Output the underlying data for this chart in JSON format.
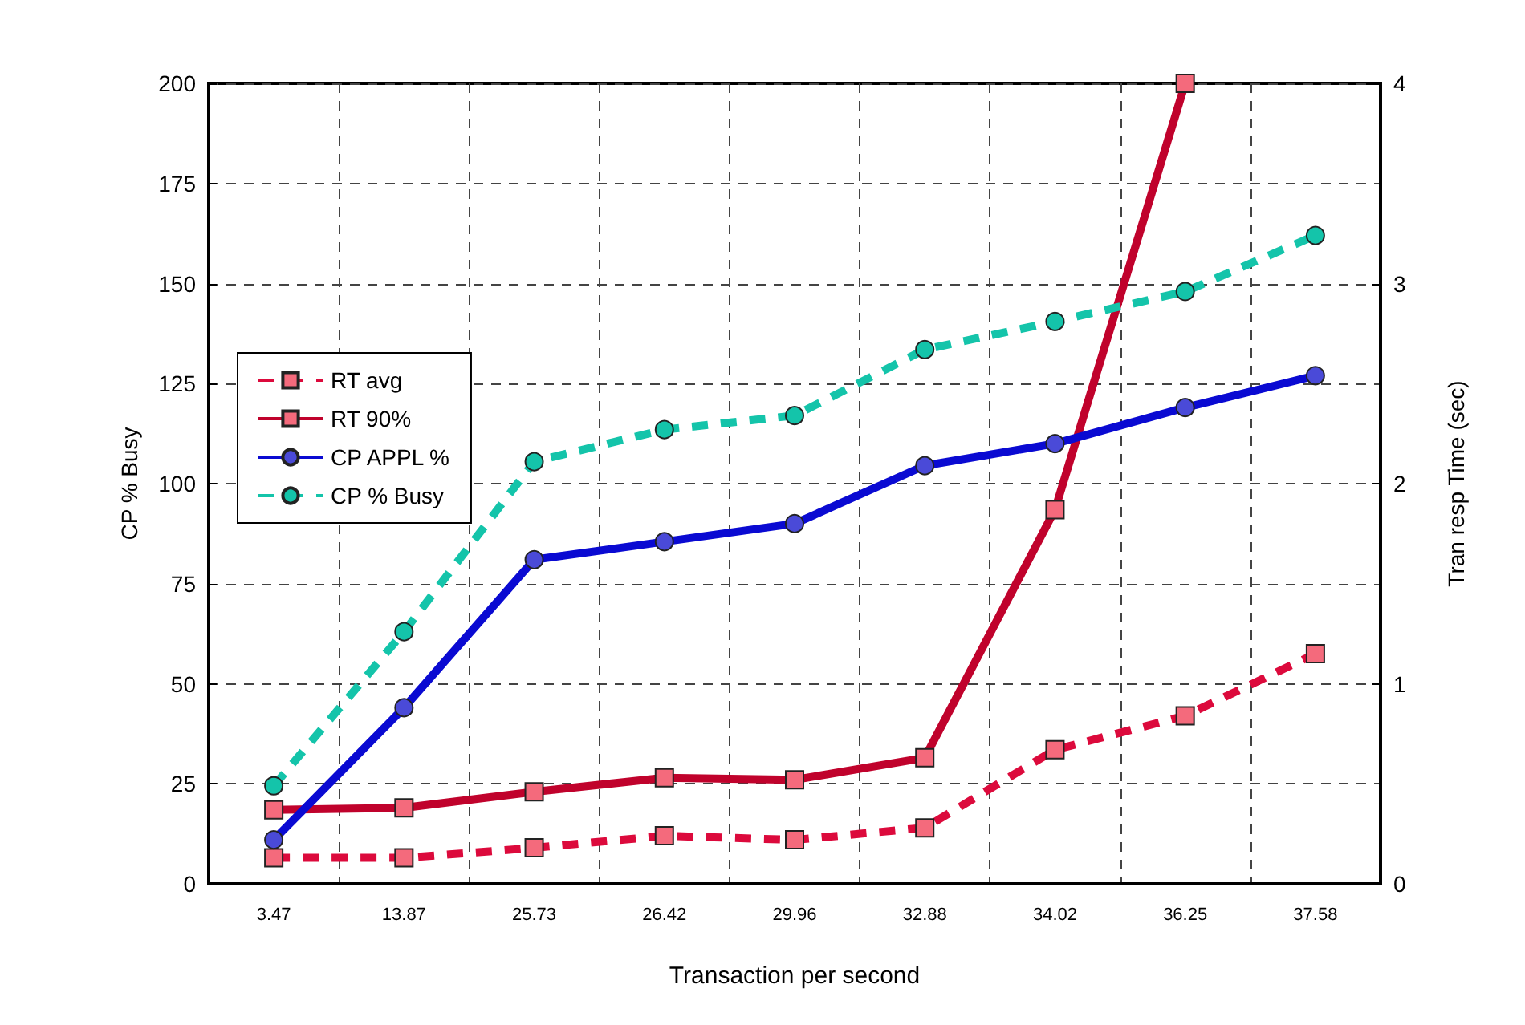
{
  "chart_data": {
    "type": "line",
    "xlabel": "Transaction per second",
    "ylabel": "CP % Busy",
    "y2label": "Tran resp Time (sec)",
    "categories": [
      "3.47",
      "13.87",
      "25.73",
      "26.42",
      "29.96",
      "32.88",
      "34.02",
      "36.25",
      "37.58"
    ],
    "series": [
      {
        "name": "RT avg",
        "color": "#dc0a3c",
        "axis": "y2",
        "line_style": "dashed",
        "marker": "square",
        "values": [
          0.13,
          0.13,
          0.18,
          0.24,
          0.22,
          0.28,
          0.67,
          0.84,
          1.15
        ]
      },
      {
        "name": "RT 90%",
        "color": "#c0022c",
        "axis": "y2",
        "line_style": "solid",
        "marker": "square",
        "values": [
          0.37,
          0.38,
          0.46,
          0.53,
          0.52,
          0.63,
          1.87,
          4.0,
          null
        ]
      },
      {
        "name": "CP APPL %",
        "color": "#0a0ad2",
        "line_style": "solid",
        "marker": "circle",
        "values": [
          11,
          44,
          81,
          85.5,
          90,
          104.5,
          110,
          119,
          127
        ]
      },
      {
        "name": "CP % Busy",
        "color": "#14c4aa",
        "line_style": "dashed",
        "marker": "circle",
        "values": [
          24.5,
          63,
          105.5,
          113.5,
          117,
          133.5,
          140.5,
          148,
          162
        ]
      }
    ],
    "ylim": [
      0,
      200
    ],
    "yticks": [
      0,
      25,
      50,
      75,
      100,
      125,
      150,
      175,
      200
    ],
    "y2lim": [
      0,
      4
    ],
    "y2ticks": [
      0,
      1,
      2,
      3,
      4
    ],
    "grid": true,
    "legend": "left"
  }
}
